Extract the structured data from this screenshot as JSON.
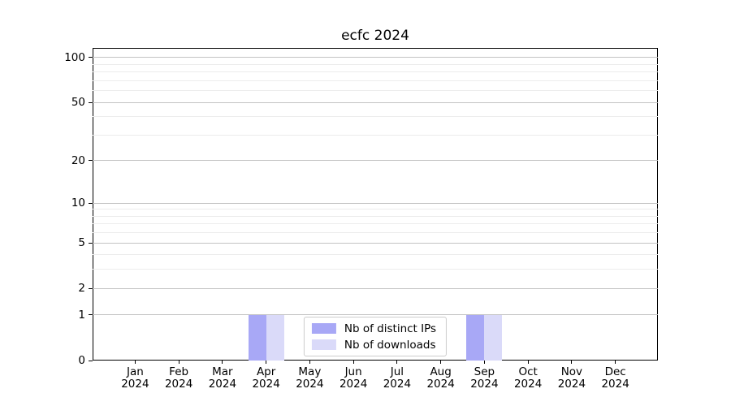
{
  "chart_data": {
    "type": "bar",
    "title": "ecfc 2024",
    "categories": [
      "Jan\n2024",
      "Feb\n2024",
      "Mar\n2024",
      "Apr\n2024",
      "May\n2024",
      "Jun\n2024",
      "Jul\n2024",
      "Aug\n2024",
      "Sep\n2024",
      "Oct\n2024",
      "Nov\n2024",
      "Dec\n2024"
    ],
    "series": [
      {
        "name": "Nb of distinct IPs",
        "color": "#a8a8f6",
        "values": [
          0,
          0,
          0,
          1,
          0,
          0,
          0,
          0,
          1,
          0,
          0,
          0
        ]
      },
      {
        "name": "Nb of downloads",
        "color": "#dadaf9",
        "values": [
          0,
          0,
          0,
          1,
          0,
          0,
          0,
          0,
          1,
          0,
          0,
          0
        ]
      }
    ],
    "yscale": "log1p",
    "ylim": [
      0,
      116
    ],
    "yticks": [
      0,
      1,
      2,
      5,
      10,
      20,
      50,
      100
    ],
    "ytick_labels": [
      "0",
      "1",
      "2",
      "5",
      "10",
      "20",
      "50",
      "100"
    ],
    "minor_gridlines": [
      3,
      4,
      6,
      7,
      8,
      9,
      30,
      40,
      60,
      70,
      80,
      90
    ],
    "grid": "horizontal",
    "legend_position": "lower center",
    "colors": {
      "major_grid": "#c3c3c3",
      "minor_grid": "#ececec",
      "spine": "#000000",
      "legend_border": "#cccccc"
    }
  }
}
